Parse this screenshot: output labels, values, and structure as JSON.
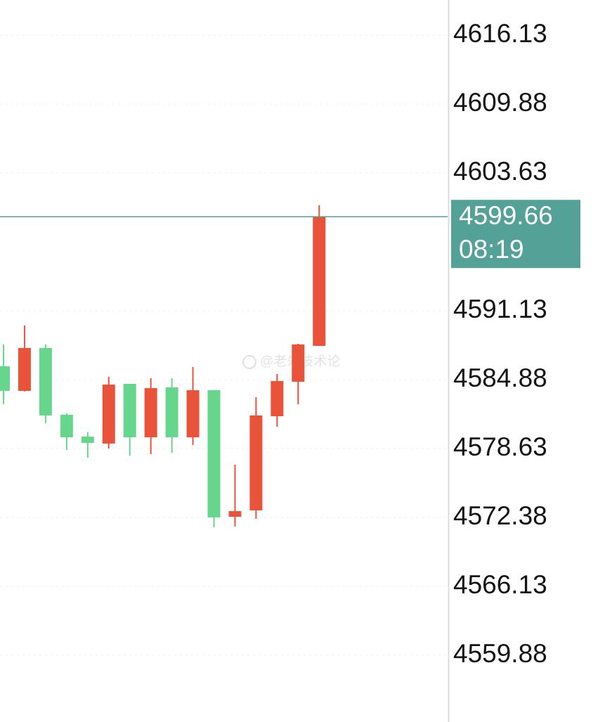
{
  "chart_data": {
    "type": "candlestick",
    "up_color": "#e8533a",
    "down_color": "#66d68d",
    "open": [
      4586.09,
      4583.86,
      4587.75,
      4581.69,
      4579.71,
      4579.08,
      4584.5,
      4579.65,
      4584.18,
      4579.65,
      4583.92,
      4572.44,
      4573.02,
      4581.56,
      4584.69,
      4587.94
    ],
    "high": [
      4588.07,
      4589.79,
      4588.07,
      4581.82,
      4580.1,
      4585.14,
      4584.5,
      4585.01,
      4585.01,
      4586.03,
      4583.92,
      4577.16,
      4583.29,
      4585.39,
      4588.13,
      4600.7
    ],
    "low": [
      4582.65,
      4583.8,
      4580.93,
      4578.5,
      4577.8,
      4578.63,
      4577.99,
      4578.12,
      4578.25,
      4578.95,
      4571.49,
      4571.55,
      4572.25,
      4580.61,
      4582.65,
      4587.94
    ],
    "close": [
      4583.86,
      4587.75,
      4581.63,
      4579.65,
      4579.14,
      4584.43,
      4579.65,
      4584.11,
      4579.65,
      4583.92,
      4572.38,
      4572.95,
      4581.63,
      4584.75,
      4588.07,
      4599.66
    ],
    "ylim": [
      4553.82,
      4619.32
    ],
    "yticks": [
      4616.13,
      4609.88,
      4603.63,
      4591.13,
      4584.88,
      4578.63,
      4572.38,
      4566.13,
      4559.88
    ],
    "grid": true,
    "last_price": {
      "value": 4599.66,
      "time": "08:19",
      "color": "#53a197"
    },
    "watermark": "@老朱技术论"
  }
}
